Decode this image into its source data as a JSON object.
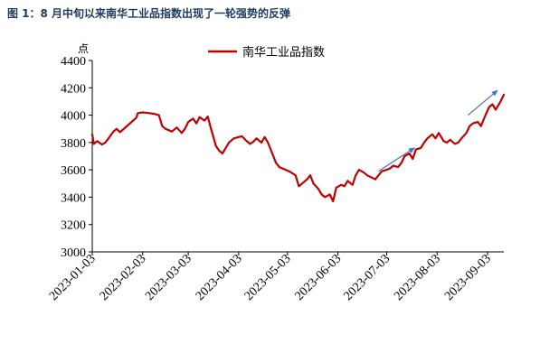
{
  "figure_title": "图 1：8 月中旬以来南华工业品指数出现了一轮强势的反弹",
  "chart_data": {
    "type": "line",
    "title": "",
    "xlabel": "",
    "ylabel": "点",
    "ylim": [
      3000,
      4400
    ],
    "yticks": [
      3000,
      3200,
      3400,
      3600,
      3800,
      4000,
      4200,
      4400
    ],
    "x_range": [
      "2023-01-03",
      "2023-09-13"
    ],
    "xticks": [
      "2023-01-03",
      "2023-02-03",
      "2023-03-03",
      "2023-04-03",
      "2023-05-03",
      "2023-06-03",
      "2023-07-03",
      "2023-08-03",
      "2023-09-03"
    ],
    "grid": false,
    "legend_position": "top-center",
    "series": [
      {
        "name": "南华工业品指数",
        "color": "#c00000",
        "points": [
          [
            "2023-01-03",
            3860
          ],
          [
            "2023-01-04",
            3790
          ],
          [
            "2023-01-06",
            3810
          ],
          [
            "2023-01-09",
            3785
          ],
          [
            "2023-01-11",
            3800
          ],
          [
            "2023-01-13",
            3830
          ],
          [
            "2023-01-16",
            3880
          ],
          [
            "2023-01-18",
            3900
          ],
          [
            "2023-01-20",
            3875
          ],
          [
            "2023-01-30",
            3980
          ],
          [
            "2023-01-31",
            4015
          ],
          [
            "2023-02-03",
            4020
          ],
          [
            "2023-02-07",
            4015
          ],
          [
            "2023-02-10",
            4010
          ],
          [
            "2023-02-13",
            4000
          ],
          [
            "2023-02-15",
            3920
          ],
          [
            "2023-02-17",
            3900
          ],
          [
            "2023-02-21",
            3880
          ],
          [
            "2023-02-24",
            3910
          ],
          [
            "2023-02-27",
            3870
          ],
          [
            "2023-03-01",
            3900
          ],
          [
            "2023-03-03",
            3950
          ],
          [
            "2023-03-06",
            3975
          ],
          [
            "2023-03-08",
            3940
          ],
          [
            "2023-03-10",
            3985
          ],
          [
            "2023-03-13",
            3960
          ],
          [
            "2023-03-15",
            3990
          ],
          [
            "2023-03-17",
            3900
          ],
          [
            "2023-03-20",
            3775
          ],
          [
            "2023-03-22",
            3740
          ],
          [
            "2023-03-24",
            3720
          ],
          [
            "2023-03-28",
            3800
          ],
          [
            "2023-03-31",
            3830
          ],
          [
            "2023-04-03",
            3840
          ],
          [
            "2023-04-05",
            3845
          ],
          [
            "2023-04-07",
            3820
          ],
          [
            "2023-04-10",
            3790
          ],
          [
            "2023-04-12",
            3805
          ],
          [
            "2023-04-14",
            3830
          ],
          [
            "2023-04-17",
            3800
          ],
          [
            "2023-04-19",
            3840
          ],
          [
            "2023-04-21",
            3800
          ],
          [
            "2023-04-24",
            3710
          ],
          [
            "2023-04-26",
            3650
          ],
          [
            "2023-04-28",
            3620
          ],
          [
            "2023-05-04",
            3590
          ],
          [
            "2023-05-08",
            3560
          ],
          [
            "2023-05-10",
            3480
          ],
          [
            "2023-05-12",
            3500
          ],
          [
            "2023-05-15",
            3530
          ],
          [
            "2023-05-17",
            3560
          ],
          [
            "2023-05-19",
            3500
          ],
          [
            "2023-05-22",
            3460
          ],
          [
            "2023-05-24",
            3420
          ],
          [
            "2023-05-26",
            3400
          ],
          [
            "2023-05-29",
            3420
          ],
          [
            "2023-05-31",
            3370
          ],
          [
            "2023-06-02",
            3470
          ],
          [
            "2023-06-05",
            3490
          ],
          [
            "2023-06-07",
            3480
          ],
          [
            "2023-06-09",
            3520
          ],
          [
            "2023-06-12",
            3490
          ],
          [
            "2023-06-14",
            3560
          ],
          [
            "2023-06-16",
            3600
          ],
          [
            "2023-06-19",
            3580
          ],
          [
            "2023-06-21",
            3560
          ],
          [
            "2023-06-26",
            3530
          ],
          [
            "2023-06-28",
            3560
          ],
          [
            "2023-06-30",
            3590
          ],
          [
            "2023-07-03",
            3600
          ],
          [
            "2023-07-05",
            3610
          ],
          [
            "2023-07-07",
            3630
          ],
          [
            "2023-07-10",
            3620
          ],
          [
            "2023-07-12",
            3650
          ],
          [
            "2023-07-14",
            3700
          ],
          [
            "2023-07-17",
            3720
          ],
          [
            "2023-07-19",
            3680
          ],
          [
            "2023-07-21",
            3750
          ],
          [
            "2023-07-24",
            3760
          ],
          [
            "2023-07-26",
            3800
          ],
          [
            "2023-07-28",
            3830
          ],
          [
            "2023-07-31",
            3860
          ],
          [
            "2023-08-02",
            3830
          ],
          [
            "2023-08-04",
            3870
          ],
          [
            "2023-08-07",
            3810
          ],
          [
            "2023-08-09",
            3800
          ],
          [
            "2023-08-11",
            3820
          ],
          [
            "2023-08-14",
            3790
          ],
          [
            "2023-08-16",
            3800
          ],
          [
            "2023-08-18",
            3830
          ],
          [
            "2023-08-21",
            3870
          ],
          [
            "2023-08-23",
            3920
          ],
          [
            "2023-08-25",
            3940
          ],
          [
            "2023-08-28",
            3950
          ],
          [
            "2023-08-30",
            3920
          ],
          [
            "2023-09-01",
            3980
          ],
          [
            "2023-09-04",
            4060
          ],
          [
            "2023-09-06",
            4080
          ],
          [
            "2023-09-08",
            4040
          ],
          [
            "2023-09-11",
            4100
          ],
          [
            "2023-09-13",
            4150
          ]
        ]
      }
    ],
    "annotations": [
      {
        "type": "arrow",
        "from": [
          "2023-06-28",
          3590
        ],
        "to": [
          "2023-07-20",
          3760
        ],
        "color": "#4472c4"
      },
      {
        "type": "arrow",
        "from": [
          "2023-08-22",
          4000
        ],
        "to": [
          "2023-09-09",
          4180
        ],
        "color": "#4472c4"
      }
    ]
  }
}
